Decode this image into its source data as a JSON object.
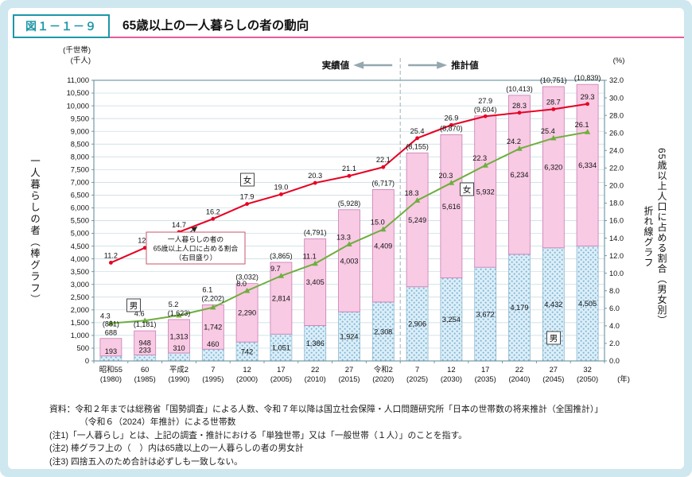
{
  "page": {
    "figure_label": "図１－１－９",
    "title": "65歳以上の一人暮らしの者の動向"
  },
  "chart": {
    "left_unit_line1": "(千世帯)",
    "left_unit_line2": "(千人)",
    "right_unit": "(%)",
    "x_unit": "(年)",
    "left_axis_title": "一人暮らしの者（棒グラフ）",
    "right_axis_title_line1": "65歳以上人口に占める割合（男女別）",
    "right_axis_title_line2": "折れ線グラフ",
    "actual_label": "実績値",
    "projection_label": "推計値",
    "callout_lines": [
      "一人暮らしの者の",
      "65歳以上人口に占める割合",
      "（右目盛り）"
    ],
    "female_label": "女",
    "male_label": "男"
  },
  "colors": {
    "background": "#cfe7ef",
    "panel": "#ffffff",
    "accent_teal": "#1e97a8",
    "accent_pink": "#e85a9b",
    "grid": "#c2d9e1",
    "axis": "#68909e",
    "annotation_gray": "#95a8b0",
    "callout_border": "#c9566e",
    "text": "#111111"
  },
  "chart_data": {
    "type": "bar",
    "variant": "stacked-bars-with-two-overlay-lines",
    "categories_era": [
      "昭和55",
      "60",
      "平成2",
      "7",
      "12",
      "17",
      "22",
      "27",
      "令和2",
      "7",
      "12",
      "17",
      "22",
      "27",
      "32"
    ],
    "categories_year": [
      "(1980)",
      "(1985)",
      "(1990)",
      "(1995)",
      "(2000)",
      "(2005)",
      "(2010)",
      "(2015)",
      "(2020)",
      "(2025)",
      "(2030)",
      "(2035)",
      "(2040)",
      "(2045)",
      "(2050)"
    ],
    "left_axis": {
      "min": 0,
      "max": 11000,
      "step": 500
    },
    "right_axis": {
      "min": 0,
      "max": 32,
      "step": 2
    },
    "projection_boundary_after_index": 8,
    "bar_total_labels": [
      "(881)",
      "(1,181)",
      "(1,623)",
      "(2,202)",
      "(3,032)",
      "(3,865)",
      "(4,791)",
      "(5,928)",
      "(6,717)",
      "(8,155)",
      "(8,870)",
      "(9,604)",
      "(10,413)",
      "(10,751)",
      "(10,839)"
    ],
    "bar_series": [
      {
        "name": "女",
        "position": "top",
        "color": "#f8cae4",
        "border": "#c77cb2",
        "values": [
          688,
          948,
          1313,
          1742,
          2290,
          2814,
          3405,
          4003,
          4409,
          5249,
          5616,
          5932,
          6234,
          6320,
          6334
        ],
        "labels": [
          "688",
          "948",
          "1,313",
          "1,742",
          "2,290",
          "2,814",
          "3,405",
          "4,003",
          "4,409",
          "5,249",
          "5,616",
          "5,932",
          "6,234",
          "6,320",
          "6,334"
        ]
      },
      {
        "name": "男",
        "position": "bottom",
        "color": "#dceef8",
        "dot_color": "#7db5d5",
        "border": "#8fb9cf",
        "values": [
          193,
          233,
          310,
          460,
          742,
          1051,
          1386,
          1924,
          2308,
          2906,
          3254,
          3672,
          4179,
          4432,
          4505
        ],
        "labels": [
          "193",
          "233",
          "310",
          "460",
          "742",
          "1,051",
          "1,386",
          "1,924",
          "2,308",
          "2,906",
          "3,254",
          "3,672",
          "4,179",
          "4,432",
          "4,505"
        ]
      }
    ],
    "line_series": [
      {
        "name": "女",
        "color": "#e60021",
        "marker": "circle",
        "values": [
          11.2,
          12.9,
          14.7,
          16.2,
          17.9,
          19.0,
          20.3,
          21.1,
          22.1,
          25.4,
          26.9,
          27.9,
          28.3,
          28.7,
          29.3
        ],
        "labels": [
          "11.2",
          "12.9",
          "14.7",
          "16.2",
          "17.9",
          "19.0",
          "20.3",
          "21.1",
          "22.1",
          "25.4",
          "26.9",
          "27.9",
          "28.3",
          "28.7",
          "29.3"
        ]
      },
      {
        "name": "男",
        "color": "#6fae3e",
        "marker": "triangle",
        "values": [
          4.3,
          4.6,
          5.2,
          6.1,
          8.0,
          9.7,
          11.1,
          13.3,
          15.0,
          18.3,
          20.3,
          22.3,
          24.2,
          25.4,
          26.1
        ],
        "labels": [
          "4.3",
          "4.6",
          "5.2",
          "6.1",
          "8.0",
          "9.7",
          "11.1",
          "13.3",
          "15.0",
          "18.3",
          "20.3",
          "22.3",
          "24.2",
          "25.4",
          "26.1"
        ]
      }
    ]
  },
  "notes": {
    "source_line1": "資料：令和２年までは総務省「国勢調査」による人数、令和７年以降は国立社会保障・人口問題研究所「日本の世帯数の将来推計（全国推計）」",
    "source_line2": "（令和６（2024）年推計）による世帯数",
    "note1": "(注1)「一人暮らし」とは、上記の調査・推計における「単独世帯」又は「一般世帯（１人）」のことを指す。",
    "note2": "(注2) 棒グラフ上の（　）内は65歳以上の一人暮らしの者の男女計",
    "note3": "(注3) 四捨五入のため合計は必ずしも一致しない。"
  }
}
